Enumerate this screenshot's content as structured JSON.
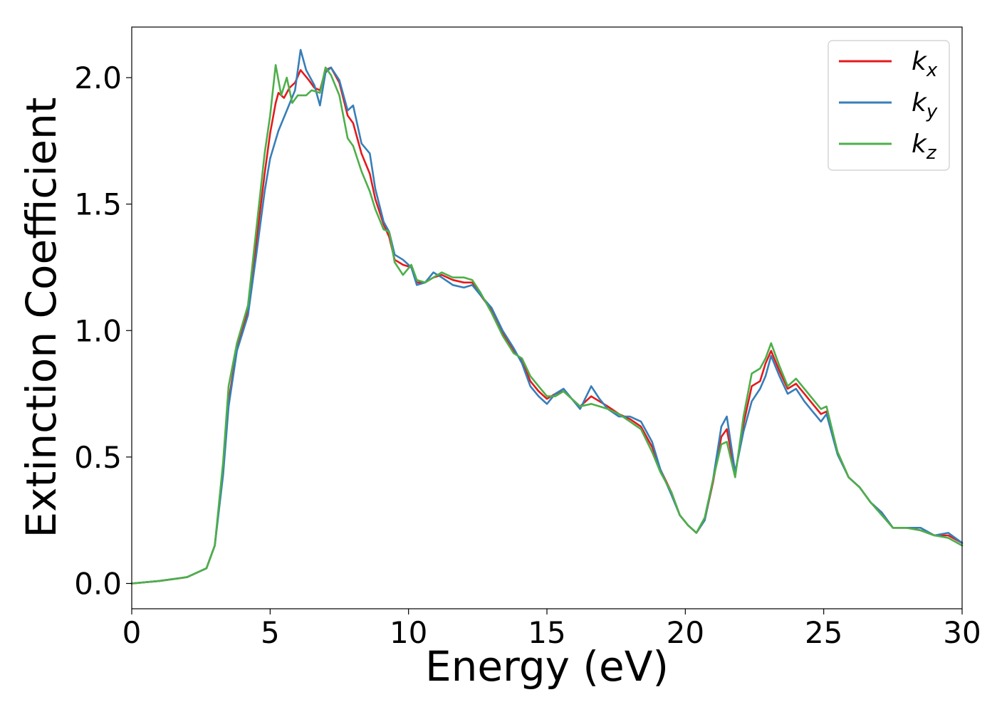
{
  "chart_data": {
    "type": "line",
    "title": "",
    "xlabel": "Energy (eV)",
    "ylabel": "Extinction Coefficient",
    "xlim": [
      0,
      30
    ],
    "ylim": [
      -0.1,
      2.2
    ],
    "xticks": [
      0,
      5,
      10,
      15,
      20,
      25,
      30
    ],
    "xtick_labels": [
      "0",
      "5",
      "10",
      "15",
      "20",
      "25",
      "30"
    ],
    "yticks": [
      0.0,
      0.5,
      1.0,
      1.5,
      2.0
    ],
    "ytick_labels": [
      "0.0",
      "0.5",
      "1.0",
      "1.5",
      "2.0"
    ],
    "grid": false,
    "legend": "top-right",
    "series": [
      {
        "name": "k",
        "subscript": "x",
        "color": "#e41a1c",
        "points": [
          [
            0,
            0
          ],
          [
            1,
            0.01
          ],
          [
            2,
            0.025
          ],
          [
            2.7,
            0.06
          ],
          [
            3.0,
            0.15
          ],
          [
            3.3,
            0.45
          ],
          [
            3.5,
            0.72
          ],
          [
            3.8,
            0.93
          ],
          [
            4.2,
            1.08
          ],
          [
            4.5,
            1.35
          ],
          [
            4.8,
            1.62
          ],
          [
            5.0,
            1.78
          ],
          [
            5.2,
            1.9
          ],
          [
            5.3,
            1.94
          ],
          [
            5.5,
            1.92
          ],
          [
            5.7,
            1.96
          ],
          [
            5.9,
            1.98
          ],
          [
            6.1,
            2.03
          ],
          [
            6.4,
            1.99
          ],
          [
            6.6,
            1.96
          ],
          [
            6.8,
            1.95
          ],
          [
            7.0,
            2.03
          ],
          [
            7.2,
            2.04
          ],
          [
            7.5,
            1.98
          ],
          [
            7.8,
            1.85
          ],
          [
            8.0,
            1.82
          ],
          [
            8.3,
            1.7
          ],
          [
            8.6,
            1.62
          ],
          [
            8.8,
            1.52
          ],
          [
            9.1,
            1.42
          ],
          [
            9.3,
            1.37
          ],
          [
            9.5,
            1.28
          ],
          [
            9.8,
            1.26
          ],
          [
            10.1,
            1.25
          ],
          [
            10.3,
            1.19
          ],
          [
            10.6,
            1.19
          ],
          [
            10.9,
            1.21
          ],
          [
            11.2,
            1.22
          ],
          [
            11.6,
            1.2
          ],
          [
            12.0,
            1.19
          ],
          [
            12.3,
            1.19
          ],
          [
            12.6,
            1.14
          ],
          [
            13.0,
            1.08
          ],
          [
            13.4,
            0.99
          ],
          [
            13.8,
            0.92
          ],
          [
            14.1,
            0.88
          ],
          [
            14.4,
            0.8
          ],
          [
            14.7,
            0.76
          ],
          [
            15.0,
            0.73
          ],
          [
            15.3,
            0.75
          ],
          [
            15.6,
            0.76
          ],
          [
            15.9,
            0.73
          ],
          [
            16.2,
            0.7
          ],
          [
            16.6,
            0.74
          ],
          [
            16.9,
            0.72
          ],
          [
            17.2,
            0.7
          ],
          [
            17.6,
            0.67
          ],
          [
            18.0,
            0.65
          ],
          [
            18.4,
            0.62
          ],
          [
            18.8,
            0.54
          ],
          [
            19.1,
            0.45
          ],
          [
            19.5,
            0.36
          ],
          [
            19.8,
            0.27
          ],
          [
            20.1,
            0.23
          ],
          [
            20.4,
            0.2
          ],
          [
            20.7,
            0.25
          ],
          [
            21.0,
            0.4
          ],
          [
            21.3,
            0.58
          ],
          [
            21.5,
            0.61
          ],
          [
            21.8,
            0.43
          ],
          [
            22.1,
            0.63
          ],
          [
            22.4,
            0.78
          ],
          [
            22.7,
            0.8
          ],
          [
            22.9,
            0.87
          ],
          [
            23.1,
            0.92
          ],
          [
            23.4,
            0.84
          ],
          [
            23.7,
            0.77
          ],
          [
            24.0,
            0.79
          ],
          [
            24.3,
            0.75
          ],
          [
            24.6,
            0.71
          ],
          [
            24.9,
            0.67
          ],
          [
            25.1,
            0.68
          ],
          [
            25.5,
            0.52
          ],
          [
            25.9,
            0.42
          ],
          [
            26.3,
            0.38
          ],
          [
            26.7,
            0.32
          ],
          [
            27.1,
            0.28
          ],
          [
            27.5,
            0.22
          ],
          [
            28.0,
            0.22
          ],
          [
            28.5,
            0.21
          ],
          [
            29.0,
            0.19
          ],
          [
            29.5,
            0.19
          ],
          [
            30.0,
            0.16
          ]
        ]
      },
      {
        "name": "k",
        "subscript": "y",
        "color": "#377eb8",
        "points": [
          [
            0,
            0
          ],
          [
            1,
            0.01
          ],
          [
            2,
            0.025
          ],
          [
            2.7,
            0.06
          ],
          [
            3.0,
            0.15
          ],
          [
            3.3,
            0.43
          ],
          [
            3.5,
            0.7
          ],
          [
            3.8,
            0.92
          ],
          [
            4.2,
            1.06
          ],
          [
            4.5,
            1.3
          ],
          [
            4.8,
            1.55
          ],
          [
            5.0,
            1.68
          ],
          [
            5.3,
            1.79
          ],
          [
            5.6,
            1.87
          ],
          [
            5.9,
            1.95
          ],
          [
            6.1,
            2.11
          ],
          [
            6.3,
            2.03
          ],
          [
            6.6,
            1.97
          ],
          [
            6.8,
            1.89
          ],
          [
            7.0,
            2.02
          ],
          [
            7.2,
            2.04
          ],
          [
            7.5,
            1.99
          ],
          [
            7.8,
            1.87
          ],
          [
            8.0,
            1.89
          ],
          [
            8.3,
            1.74
          ],
          [
            8.6,
            1.7
          ],
          [
            8.8,
            1.56
          ],
          [
            9.1,
            1.43
          ],
          [
            9.3,
            1.39
          ],
          [
            9.5,
            1.3
          ],
          [
            9.8,
            1.28
          ],
          [
            10.1,
            1.25
          ],
          [
            10.3,
            1.18
          ],
          [
            10.6,
            1.19
          ],
          [
            10.9,
            1.23
          ],
          [
            11.2,
            1.21
          ],
          [
            11.6,
            1.18
          ],
          [
            12.0,
            1.17
          ],
          [
            12.3,
            1.18
          ],
          [
            12.6,
            1.14
          ],
          [
            13.0,
            1.09
          ],
          [
            13.4,
            1.0
          ],
          [
            13.8,
            0.93
          ],
          [
            14.1,
            0.87
          ],
          [
            14.4,
            0.78
          ],
          [
            14.7,
            0.74
          ],
          [
            15.0,
            0.71
          ],
          [
            15.3,
            0.75
          ],
          [
            15.6,
            0.77
          ],
          [
            15.9,
            0.73
          ],
          [
            16.2,
            0.69
          ],
          [
            16.6,
            0.78
          ],
          [
            16.9,
            0.73
          ],
          [
            17.2,
            0.69
          ],
          [
            17.6,
            0.66
          ],
          [
            18.0,
            0.66
          ],
          [
            18.4,
            0.64
          ],
          [
            18.8,
            0.56
          ],
          [
            19.1,
            0.45
          ],
          [
            19.5,
            0.35
          ],
          [
            19.8,
            0.27
          ],
          [
            20.1,
            0.23
          ],
          [
            20.4,
            0.2
          ],
          [
            20.7,
            0.25
          ],
          [
            21.0,
            0.41
          ],
          [
            21.3,
            0.62
          ],
          [
            21.5,
            0.66
          ],
          [
            21.8,
            0.44
          ],
          [
            22.1,
            0.6
          ],
          [
            22.4,
            0.72
          ],
          [
            22.7,
            0.77
          ],
          [
            22.9,
            0.82
          ],
          [
            23.1,
            0.9
          ],
          [
            23.4,
            0.82
          ],
          [
            23.7,
            0.75
          ],
          [
            24.0,
            0.77
          ],
          [
            24.3,
            0.72
          ],
          [
            24.6,
            0.68
          ],
          [
            24.9,
            0.64
          ],
          [
            25.1,
            0.67
          ],
          [
            25.5,
            0.51
          ],
          [
            25.9,
            0.42
          ],
          [
            26.3,
            0.38
          ],
          [
            26.7,
            0.32
          ],
          [
            27.1,
            0.28
          ],
          [
            27.5,
            0.22
          ],
          [
            28.0,
            0.22
          ],
          [
            28.5,
            0.22
          ],
          [
            29.0,
            0.19
          ],
          [
            29.5,
            0.2
          ],
          [
            30.0,
            0.16
          ]
        ]
      },
      {
        "name": "k",
        "subscript": "z",
        "color": "#4daf4a",
        "points": [
          [
            0,
            0
          ],
          [
            1,
            0.01
          ],
          [
            2,
            0.025
          ],
          [
            2.7,
            0.06
          ],
          [
            3.0,
            0.15
          ],
          [
            3.3,
            0.48
          ],
          [
            3.5,
            0.78
          ],
          [
            3.8,
            0.95
          ],
          [
            4.2,
            1.1
          ],
          [
            4.5,
            1.4
          ],
          [
            4.8,
            1.7
          ],
          [
            5.0,
            1.85
          ],
          [
            5.2,
            2.05
          ],
          [
            5.4,
            1.93
          ],
          [
            5.6,
            2.0
          ],
          [
            5.8,
            1.9
          ],
          [
            6.0,
            1.93
          ],
          [
            6.3,
            1.93
          ],
          [
            6.5,
            1.95
          ],
          [
            6.8,
            1.94
          ],
          [
            7.0,
            2.04
          ],
          [
            7.2,
            2.01
          ],
          [
            7.5,
            1.93
          ],
          [
            7.8,
            1.76
          ],
          [
            8.0,
            1.73
          ],
          [
            8.3,
            1.63
          ],
          [
            8.6,
            1.55
          ],
          [
            8.8,
            1.48
          ],
          [
            9.1,
            1.4
          ],
          [
            9.3,
            1.39
          ],
          [
            9.5,
            1.27
          ],
          [
            9.8,
            1.22
          ],
          [
            10.1,
            1.26
          ],
          [
            10.3,
            1.2
          ],
          [
            10.6,
            1.19
          ],
          [
            10.9,
            1.21
          ],
          [
            11.2,
            1.23
          ],
          [
            11.6,
            1.21
          ],
          [
            12.0,
            1.21
          ],
          [
            12.3,
            1.2
          ],
          [
            12.6,
            1.15
          ],
          [
            13.0,
            1.07
          ],
          [
            13.4,
            0.98
          ],
          [
            13.8,
            0.91
          ],
          [
            14.1,
            0.89
          ],
          [
            14.4,
            0.82
          ],
          [
            14.7,
            0.78
          ],
          [
            15.0,
            0.74
          ],
          [
            15.3,
            0.74
          ],
          [
            15.6,
            0.76
          ],
          [
            15.9,
            0.73
          ],
          [
            16.2,
            0.7
          ],
          [
            16.6,
            0.71
          ],
          [
            16.9,
            0.7
          ],
          [
            17.2,
            0.69
          ],
          [
            17.6,
            0.67
          ],
          [
            18.0,
            0.64
          ],
          [
            18.4,
            0.61
          ],
          [
            18.8,
            0.52
          ],
          [
            19.1,
            0.44
          ],
          [
            19.5,
            0.36
          ],
          [
            19.8,
            0.27
          ],
          [
            20.1,
            0.23
          ],
          [
            20.4,
            0.2
          ],
          [
            20.7,
            0.26
          ],
          [
            21.0,
            0.41
          ],
          [
            21.3,
            0.55
          ],
          [
            21.5,
            0.56
          ],
          [
            21.8,
            0.42
          ],
          [
            22.1,
            0.66
          ],
          [
            22.4,
            0.83
          ],
          [
            22.7,
            0.85
          ],
          [
            22.9,
            0.89
          ],
          [
            23.1,
            0.95
          ],
          [
            23.4,
            0.86
          ],
          [
            23.7,
            0.78
          ],
          [
            24.0,
            0.81
          ],
          [
            24.3,
            0.77
          ],
          [
            24.6,
            0.73
          ],
          [
            24.9,
            0.69
          ],
          [
            25.1,
            0.7
          ],
          [
            25.5,
            0.52
          ],
          [
            25.9,
            0.42
          ],
          [
            26.3,
            0.38
          ],
          [
            26.7,
            0.32
          ],
          [
            27.1,
            0.27
          ],
          [
            27.5,
            0.22
          ],
          [
            28.0,
            0.22
          ],
          [
            28.5,
            0.21
          ],
          [
            29.0,
            0.19
          ],
          [
            29.5,
            0.18
          ],
          [
            30.0,
            0.15
          ]
        ]
      }
    ]
  }
}
